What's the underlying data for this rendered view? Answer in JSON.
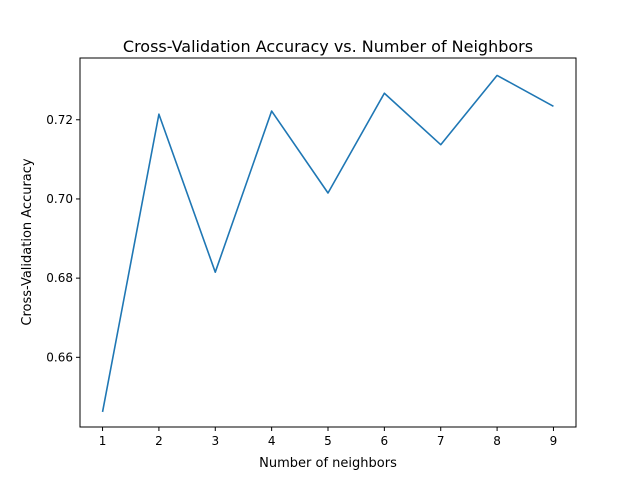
{
  "chart_data": {
    "type": "line",
    "title": "Cross-Validation Accuracy vs. Number of Neighbors",
    "xlabel": "Number of neighbors",
    "ylabel": "Cross-Validation Accuracy",
    "x": [
      1,
      2,
      3,
      4,
      5,
      6,
      7,
      8,
      9
    ],
    "series": [
      {
        "values": [
          0.6462,
          0.7214,
          0.6815,
          0.7222,
          0.7015,
          0.7267,
          0.7137,
          0.7312,
          0.7234
        ],
        "color": "#1f77b4"
      }
    ],
    "xlim": [
      0.6,
      9.4
    ],
    "ylim": [
      0.6424,
      0.7356
    ],
    "xticks": [
      1,
      2,
      3,
      4,
      5,
      6,
      7,
      8,
      9
    ],
    "yticks": [
      0.66,
      0.68,
      0.7,
      0.72
    ],
    "ytick_labels": [
      "0.66",
      "0.68",
      "0.70",
      "0.72"
    ],
    "grid": false,
    "legend": "none"
  }
}
